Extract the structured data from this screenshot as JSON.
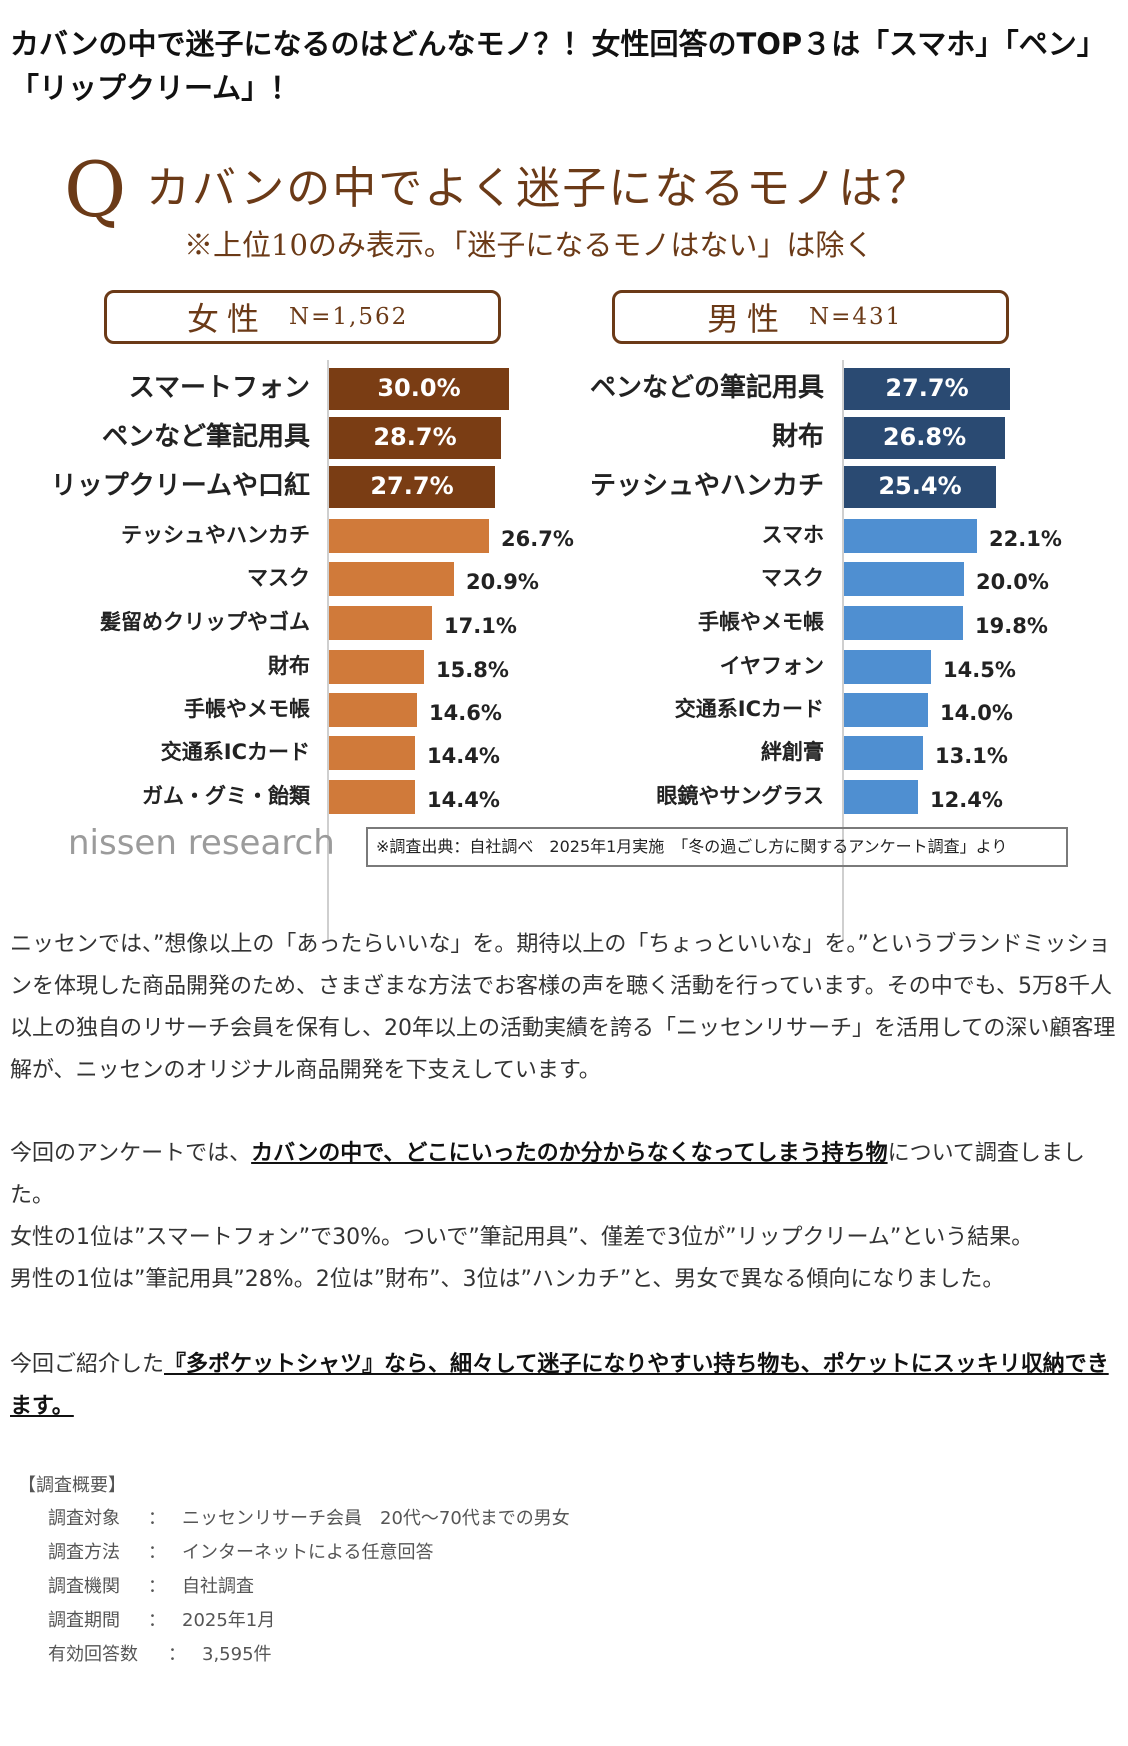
{
  "headline": "カバンの中で迷子になるのはどんなモノ？！女性回答のTOP３は「スマホ」「ペン」「リップクリーム」！",
  "infographic": {
    "q_mark": "Q",
    "title": "カバンの中でよく迷子になるモノは？",
    "subtitle": "※上位10のみ表示。「迷子になるモノはない」は除く",
    "logo": "nissen research",
    "source": "※調査出典：自社調べ　2025年1月実施　「冬の過ごし方に関するアンケート調査」より",
    "colors": {
      "female_top": "#7a3d14",
      "female_rest": "#d07a3a",
      "male_top": "#2a4a72",
      "male_rest": "#4f8fd1",
      "frame": "#6b3a17"
    }
  },
  "chart_data": [
    {
      "type": "bar",
      "orientation": "horizontal",
      "group_label": "女性",
      "n_label": "N=1,562",
      "categories": [
        "スマートフォン",
        "ペンなど筆記用具",
        "リップクリームや口紅",
        "テッシュやハンカチ",
        "マスク",
        "髪留めクリップやゴム",
        "財布",
        "手帳やメモ帳",
        "交通系ICカード",
        "ガム・グミ・飴類"
      ],
      "values": [
        30.0,
        28.7,
        27.7,
        26.7,
        20.9,
        17.1,
        15.8,
        14.6,
        14.4,
        14.4
      ],
      "value_labels": [
        "30.0%",
        "28.7%",
        "27.7%",
        "26.7%",
        "20.9%",
        "17.1%",
        "15.8%",
        "14.6%",
        "14.4%",
        "14.4%"
      ],
      "highlight_top": 3
    },
    {
      "type": "bar",
      "orientation": "horizontal",
      "group_label": "男性",
      "n_label": "N=431",
      "categories": [
        "ペンなどの筆記用具",
        "財布",
        "テッシュやハンカチ",
        "スマホ",
        "マスク",
        "手帳やメモ帳",
        "イヤフォン",
        "交通系ICカード",
        "絆創膏",
        "眼鏡やサングラス"
      ],
      "values": [
        27.7,
        26.8,
        25.4,
        22.1,
        20.0,
        19.8,
        14.5,
        14.0,
        13.1,
        12.4
      ],
      "value_labels": [
        "27.7%",
        "26.8%",
        "25.4%",
        "22.1%",
        "20.0%",
        "19.8%",
        "14.5%",
        "14.0%",
        "13.1%",
        "12.4%"
      ],
      "highlight_top": 3
    }
  ],
  "paragraphs": {
    "p1": "ニッセンでは、”想像以上の「あったらいいな」を。期待以上の「ちょっといいな」を。”というブランドミッションを体現した商品開発のため、さまざまな方法でお客様の声を聴く活動を行っています。その中でも、5万8千人以上の独自のリサーチ会員を保有し、20年以上の活動実績を誇る「ニッセンリサーチ」を活用しての深い顧客理解が、ニッセンのオリジナル商品開発を下支えしています。",
    "p2_pre": "今回のアンケートでは、",
    "p2_em": "カバンの中で、どこにいったのか分からなくなってしまう持ち物",
    "p2_post": "について調査しました。",
    "p2_line2": "女性の1位は”スマートフォン”で30%。ついで”筆記用具”、僅差で3位が”リップクリーム”という結果。",
    "p2_line3": "男性の1位は”筆記用具”28%。2位は”財布”、3位は”ハンカチ”と、男女で異なる傾向になりました。",
    "p3_pre": "今回ご紹介した",
    "p3_em": "『多ポケットシャツ』なら、細々して迷子になりやすい持ち物も、ポケットにスッキリ収納できます。"
  },
  "survey": {
    "title": "【調査概要】",
    "rows": [
      {
        "key": "調査対象",
        "colon": "：",
        "value": "ニッセンリサーチ会員　20代〜70代までの男女"
      },
      {
        "key": "調査方法",
        "colon": "：",
        "value": "インターネットによる任意回答"
      },
      {
        "key": "調査機関",
        "colon": "：",
        "value": "自社調査"
      },
      {
        "key": "調査期間",
        "colon": "：",
        "value": "2025年1月"
      },
      {
        "key": "有効回答数",
        "colon": "：",
        "value": "3,595件"
      }
    ]
  }
}
